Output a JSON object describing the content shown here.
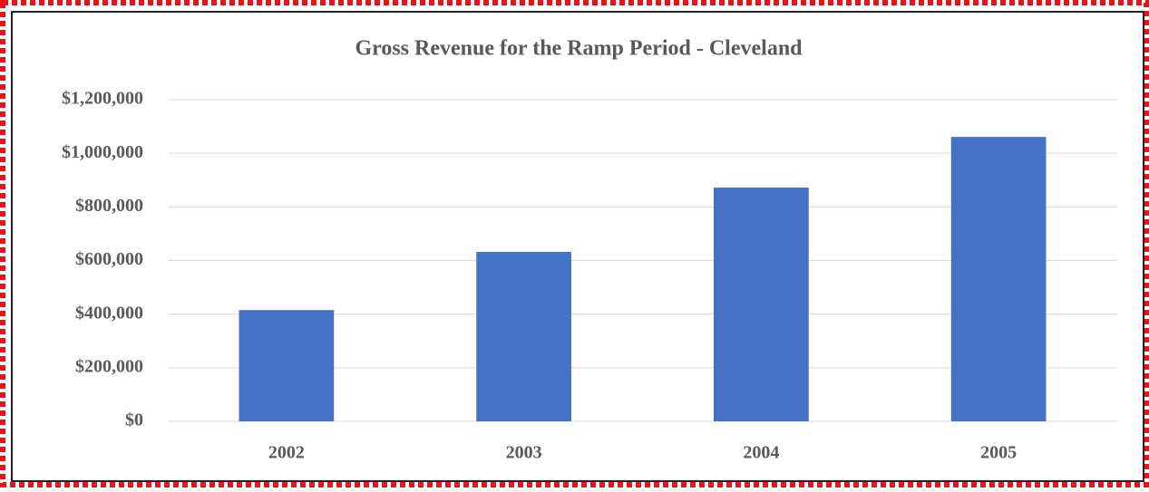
{
  "chart_data": {
    "type": "bar",
    "title": "Gross Revenue for the Ramp Period - Cleveland",
    "categories": [
      "2002",
      "2003",
      "2004",
      "2005"
    ],
    "values": [
      415000,
      632000,
      872000,
      1061000
    ],
    "color": "#4472c4",
    "ylim": [
      0,
      1200000
    ],
    "yticks": [
      {
        "value": 0,
        "label": "$0"
      },
      {
        "value": 200000,
        "label": "$200,000"
      },
      {
        "value": 400000,
        "label": "$400,000"
      },
      {
        "value": 600000,
        "label": "$600,000"
      },
      {
        "value": 800000,
        "label": "$800,000"
      },
      {
        "value": 1000000,
        "label": "$1,000,000"
      },
      {
        "value": 1200000,
        "label": "$1,200,000"
      }
    ],
    "grid": true
  }
}
